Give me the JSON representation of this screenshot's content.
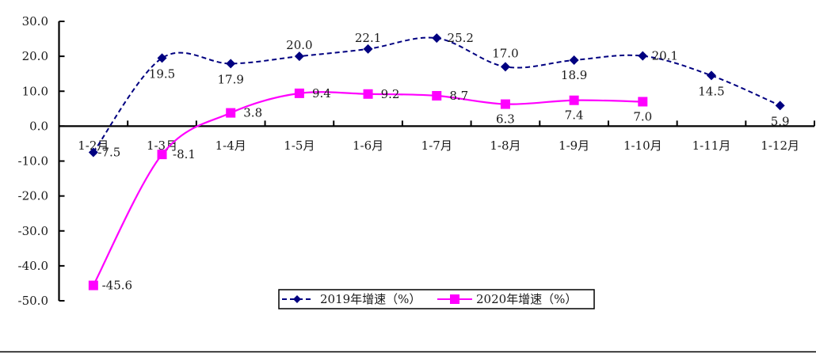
{
  "chart_data": {
    "type": "line",
    "title": "",
    "xlabel": "",
    "ylabel": "",
    "ylim": [
      -50,
      30
    ],
    "y_ticks": [
      30,
      20,
      10,
      0,
      -10,
      -20,
      -30,
      -40,
      -50
    ],
    "y_tick_labels": [
      "30.0",
      "20.0",
      "10.0",
      "0.0",
      "-10.0",
      "-20.0",
      "-30.0",
      "-40.0",
      "-50.0"
    ],
    "grid": false,
    "legend_position": "bottom-center",
    "categories": [
      "1-2月",
      "1-3月",
      "1-4月",
      "1-5月",
      "1-6月",
      "1-7月",
      "1-8月",
      "1-9月",
      "1-10月",
      "1-11月",
      "1-12月"
    ],
    "series": [
      {
        "name": "2019年增速（%）",
        "color": "#000080",
        "line_style": "dashed",
        "marker": "diamond",
        "values": [
          -7.5,
          19.5,
          17.9,
          20.0,
          22.1,
          25.2,
          17.0,
          18.9,
          20.1,
          14.5,
          5.9
        ],
        "labels": [
          "-7.5",
          "19.5",
          "17.9",
          "20.0",
          "22.1",
          "25.2",
          "17.0",
          "18.9",
          "20.1",
          "14.5",
          "5.9"
        ]
      },
      {
        "name": "2020年增速（%）",
        "color": "#FF00FF",
        "line_style": "solid",
        "marker": "square",
        "values": [
          -45.6,
          -8.1,
          3.8,
          9.4,
          9.2,
          8.7,
          6.3,
          7.4,
          7.0,
          null,
          null
        ],
        "labels": [
          "-45.6",
          "-8.1",
          "3.8",
          "9.4",
          "9.2",
          "8.7",
          "6.3",
          "7.4",
          "7.0",
          null,
          null
        ]
      }
    ]
  },
  "legend": {
    "items": [
      {
        "label": "2019年增速（%）",
        "color": "#000080"
      },
      {
        "label": "2020年增速（%）",
        "color": "#FF00FF"
      }
    ]
  }
}
